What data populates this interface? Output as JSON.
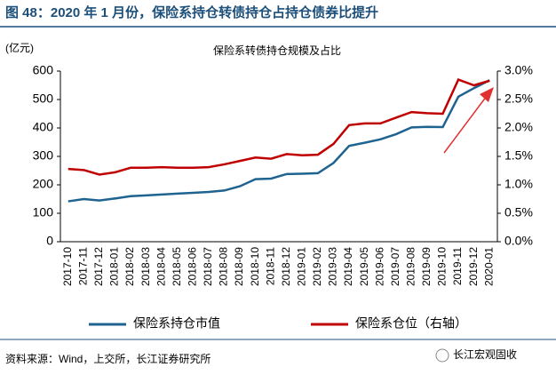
{
  "header": {
    "title": "图 48：2020 年 1 月份，保险系持仓转债持仓占持仓债券比提升"
  },
  "chart_data": {
    "type": "line",
    "title": "保险系转债持仓规模及占比",
    "y_label": "(亿元)",
    "categories": [
      "2017-10",
      "2017-11",
      "2017-12",
      "2018-01",
      "2018-02",
      "2018-03",
      "2018-04",
      "2018-05",
      "2018-06",
      "2018-07",
      "2018-08",
      "2018-09",
      "2018-10",
      "2018-11",
      "2018-12",
      "2019-01",
      "2019-02",
      "2019-03",
      "2019-04",
      "2019-05",
      "2019-06",
      "2019-07",
      "2019-08",
      "2019-09",
      "2019-10",
      "2019-11",
      "2019-12",
      "2020-01"
    ],
    "series": [
      {
        "name": "保险系持仓市值",
        "color": "#1f6391",
        "values": [
          142,
          150,
          145,
          152,
          160,
          163,
          166,
          169,
          172,
          175,
          180,
          195,
          220,
          222,
          238,
          239,
          241,
          277,
          337,
          348,
          360,
          378,
          402,
          404,
          403,
          510,
          540,
          568
        ]
      },
      {
        "name": "保险系仓位（右轴）",
        "color": "#c00000",
        "axis": "y2",
        "values": [
          1.28,
          1.26,
          1.18,
          1.22,
          1.3,
          1.3,
          1.31,
          1.3,
          1.3,
          1.31,
          1.36,
          1.42,
          1.48,
          1.46,
          1.54,
          1.52,
          1.53,
          1.72,
          2.05,
          2.08,
          2.08,
          2.18,
          2.28,
          2.26,
          2.25,
          2.85,
          2.75,
          2.83
        ]
      }
    ],
    "ylim": [
      0,
      600
    ],
    "yticks": [
      0,
      100,
      200,
      300,
      400,
      500,
      600
    ],
    "y2lim": [
      0,
      3
    ],
    "y2ticks": [
      {
        "value": 0,
        "label": "0.0%"
      },
      {
        "value": 0.5,
        "label": "0.5%"
      },
      {
        "value": 1,
        "label": "1.0%"
      },
      {
        "value": 1.5,
        "label": "1.5%"
      },
      {
        "value": 2,
        "label": "2.0%"
      },
      {
        "value": 2.5,
        "label": "2.5%"
      },
      {
        "value": 3,
        "label": "3.0%"
      }
    ],
    "legend": "bottom"
  },
  "footer": {
    "source": "资料来源：Wind，上交所，长江证券研究所",
    "watermark": "长江宏观固收"
  }
}
